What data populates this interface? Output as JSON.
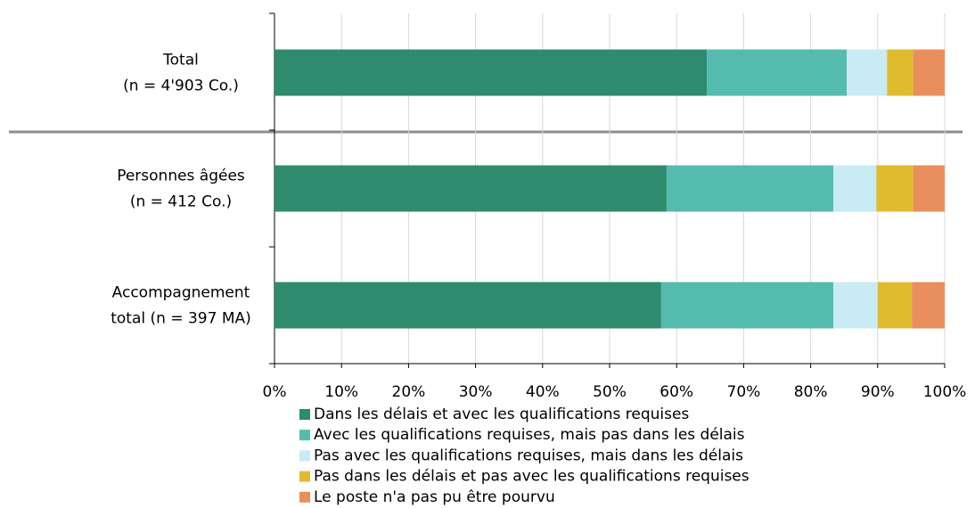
{
  "chart_data": {
    "type": "stacked_barh",
    "categories": [
      [
        "Total",
        "(n = 4'903 Co.)"
      ],
      [
        "Personnes âgées",
        "(n = 412 Co.)"
      ],
      [
        "Accompagnement",
        "total (n = 397 MA)"
      ]
    ],
    "series": [
      {
        "name": "Dans les délais et avec les qualifications requises",
        "color": "#2e8b6e",
        "values": [
          64.5,
          58.5,
          57.7
        ]
      },
      {
        "name": "Avec les qualifications requises, mais pas dans les délais",
        "color": "#55bbae",
        "values": [
          20.9,
          24.9,
          25.7
        ]
      },
      {
        "name": "Pas avec les qualifications requises, mais dans les délais",
        "color": "#c9ebf4",
        "values": [
          6.0,
          6.4,
          6.6
        ]
      },
      {
        "name": "Pas dans les délais et pas avec les qualifications requises",
        "color": "#e0bb2e",
        "values": [
          3.9,
          5.5,
          5.1
        ]
      },
      {
        "name": "Le poste n'a pas pu être pourvu",
        "color": "#e98f5e",
        "values": [
          4.7,
          4.7,
          4.9
        ]
      }
    ],
    "xlim": [
      0,
      100
    ],
    "xticks": [
      {
        "value": 0,
        "label": "0%"
      },
      {
        "value": 10,
        "label": "10%"
      },
      {
        "value": 20,
        "label": "20%"
      },
      {
        "value": 30,
        "label": "30%"
      },
      {
        "value": 40,
        "label": "40%"
      },
      {
        "value": 50,
        "label": "50%"
      },
      {
        "value": 60,
        "label": "60%"
      },
      {
        "value": 70,
        "label": "70%"
      },
      {
        "value": 80,
        "label": "80%"
      },
      {
        "value": 90,
        "label": "90%"
      },
      {
        "value": 100,
        "label": "100%"
      }
    ],
    "grid": true,
    "legend": "bottom"
  }
}
